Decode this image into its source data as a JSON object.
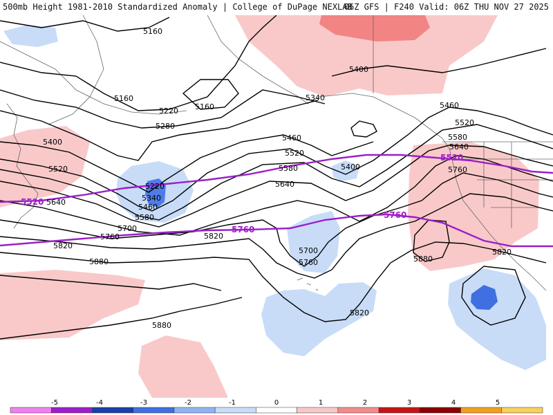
{
  "header": {
    "left_title": "500mb Height 1981-2010 Standardized Anomaly | College of DuPage NEXLAB",
    "right_title": "06Z GFS | F240 Valid: 06Z THU NOV 27 2025"
  },
  "colors": {
    "height_contour": "#000000",
    "highlight_contour": "#9b1fc9",
    "coast": "#666666"
  },
  "contour_labels": {
    "l5160a": "5160",
    "l5160b": "5160",
    "l5160c": "5160",
    "l5220a": "5220",
    "l5220b": "5220",
    "l5280": "5280",
    "l5340a": "5340",
    "l5340b": "5340",
    "l5400a": "5400",
    "l5400b": "5400",
    "l5400c": "5400",
    "l5460a": "5460",
    "l5460b": "5460",
    "l5460c": "5460",
    "l5520a": "5520",
    "l5520b": "5520",
    "l5520c": "5520",
    "l5580a": "5580",
    "l5580b": "5580",
    "l5580c": "5580",
    "l5640a": "5640",
    "l5640b": "5640",
    "l5640c": "5640",
    "l5700a": "5700",
    "l5700b": "5700",
    "l5760a": "5760",
    "l5760b": "5760",
    "l5760c": "5760",
    "l5820a": "5820",
    "l5820b": "5820",
    "l5820c": "5820",
    "l5820d": "5820",
    "l5880a": "5880",
    "l5880b": "5880",
    "l5880c": "5880"
  },
  "highlight_labels": {
    "h5520a": "5520",
    "h5520b": "5520",
    "h5760a": "5760",
    "h5760b": "5760"
  },
  "colorbar": {
    "ticks": [
      "-5",
      "-4",
      "-3",
      "-2",
      "-1",
      "0",
      "1",
      "2",
      "3",
      "4",
      "5"
    ],
    "colors": [
      "#f080f0",
      "#9b1fc9",
      "#1a3fa8",
      "#3f6fe0",
      "#8fb4f2",
      "#c8dcf8",
      "#ffffff",
      "#f8c8c8",
      "#f08c8c",
      "#c81414",
      "#8c0000",
      "#f0a020",
      "#f8d060"
    ]
  }
}
